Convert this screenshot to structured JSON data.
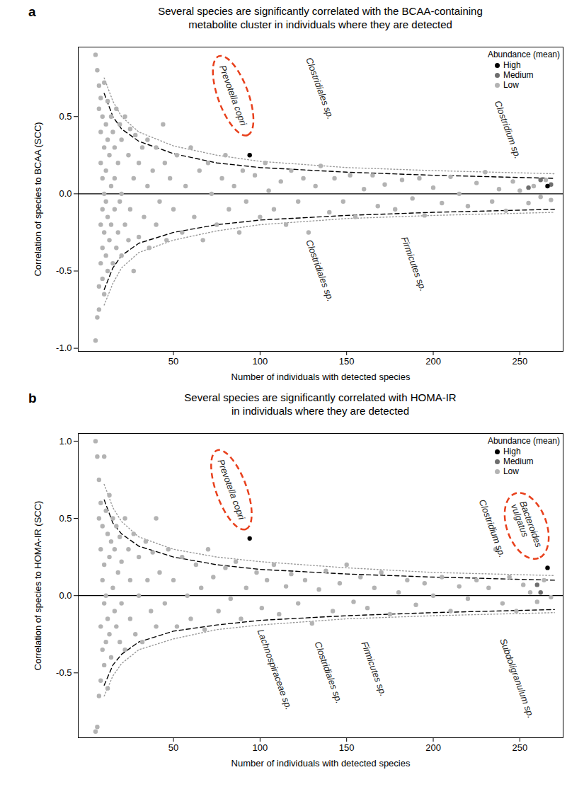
{
  "chart_data": [
    {
      "type": "scatter",
      "panel": "a",
      "title": "Several species are significantly correlated with the BCAA-containing\nmetabolite cluster in individuals where they are detected",
      "x_label": "Number of individuals with detected species",
      "y_label": "Correlation of species to BCAA (SCC)",
      "xlim": [
        -5,
        275
      ],
      "ylim": [
        -1.02,
        0.95
      ],
      "xticks": [
        50,
        100,
        150,
        200,
        250
      ],
      "yticks": [
        {
          "value": -1,
          "label": "-1.0"
        },
        -0.5,
        {
          "value": 0,
          "label": "0.0"
        },
        0.5
      ],
      "grid": false,
      "legend": "top-right",
      "legend_title": "Abundance (mean)",
      "series": [
        {
          "name": "High",
          "type": "scatter",
          "marker": "circle",
          "color": "#000000",
          "x": [
            94,
            266
          ],
          "values": [
            0.25,
            0.05
          ]
        },
        {
          "name": "Medium",
          "type": "scatter",
          "marker": "circle",
          "color": "#6e6e6e",
          "x": [
            255,
            262,
            268
          ],
          "values": [
            0.04,
            0.09,
            0.06
          ]
        },
        {
          "name": "Low",
          "type": "scatter",
          "marker": "circle",
          "color": "#b3b3b3",
          "x": [
            5,
            5,
            6,
            6,
            7,
            7,
            7,
            7,
            8,
            8,
            8,
            8,
            8,
            9,
            9,
            9,
            9,
            9,
            10,
            10,
            10,
            10,
            10,
            11,
            11,
            11,
            11,
            12,
            12,
            12,
            12,
            13,
            13,
            14,
            14,
            14,
            15,
            15,
            16,
            16,
            16,
            17,
            17,
            18,
            18,
            19,
            19,
            20,
            20,
            20,
            22,
            22,
            24,
            24,
            25,
            25,
            27,
            27,
            28,
            30,
            30,
            32,
            33,
            35,
            35,
            36,
            38,
            40,
            40,
            42,
            44,
            45,
            46,
            48,
            50,
            52,
            55,
            57,
            60,
            62,
            65,
            67,
            70,
            72,
            75,
            78,
            80,
            82,
            85,
            88,
            90,
            92,
            97,
            100,
            103,
            105,
            108,
            112,
            115,
            118,
            122,
            125,
            128,
            132,
            135,
            140,
            143,
            148,
            152,
            155,
            160,
            165,
            168,
            172,
            178,
            182,
            188,
            192,
            195,
            200,
            205,
            210,
            215,
            220,
            225,
            230,
            234,
            238,
            242,
            246,
            250,
            255,
            258,
            262,
            265,
            268
          ],
          "values": [
            0.9,
            -0.95,
            0.8,
            -0.8,
            0.7,
            0.55,
            -0.6,
            -0.75,
            0.62,
            0.4,
            0.2,
            -0.2,
            -0.45,
            0.5,
            0.1,
            -0.1,
            -0.35,
            -0.55,
            0.72,
            0.3,
            0.0,
            -0.25,
            -0.65,
            0.45,
            0.15,
            -0.05,
            -0.4,
            0.6,
            0.35,
            -0.15,
            -0.5,
            0.25,
            -0.3,
            0.5,
            0.05,
            -0.2,
            0.4,
            -0.45,
            0.3,
            0.1,
            -0.1,
            0.55,
            -0.35,
            0.2,
            -0.25,
            0.45,
            -0.05,
            0.35,
            0.0,
            -0.4,
            0.5,
            -0.2,
            0.25,
            -0.3,
            0.42,
            -0.1,
            0.1,
            -0.5,
            0.38,
            0.2,
            -0.28,
            0.3,
            -0.15,
            0.35,
            0.05,
            -0.35,
            0.15,
            0.3,
            -0.2,
            -0.05,
            0.45,
            0.2,
            -0.3,
            0.1,
            -0.1,
            0.25,
            -0.25,
            0.05,
            0.3,
            -0.15,
            0.15,
            -0.3,
            0.2,
            0.0,
            -0.2,
            0.1,
            0.25,
            -0.1,
            0.05,
            -0.25,
            0.15,
            -0.05,
            0.12,
            -0.15,
            0.2,
            0.02,
            -0.1,
            0.08,
            -0.2,
            0.15,
            -0.05,
            0.1,
            -0.25,
            0.05,
            0.18,
            -0.12,
            0.1,
            -0.05,
            0.12,
            -0.15,
            0.03,
            0.12,
            -0.08,
            0.06,
            -0.1,
            0.09,
            -0.03,
            0.1,
            -0.14,
            0.04,
            -0.06,
            0.11,
            0.0,
            -0.08,
            0.07,
            0.14,
            -0.05,
            0.03,
            -0.11,
            0.08,
            0.02,
            -0.06,
            0.05,
            -0.02,
            0.09,
            -0.04
          ]
        },
        {
          "type": "line",
          "line_style": "solid",
          "color": "#000000",
          "x": [
            -5,
            275
          ],
          "values": [
            0,
            0
          ]
        },
        {
          "type": "line",
          "line_style": "dashed",
          "color": "#000000",
          "x": [
            10,
            15,
            20,
            30,
            50,
            75,
            100,
            150,
            200,
            270
          ],
          "values": [
            0.65,
            0.5,
            0.42,
            0.34,
            0.26,
            0.2,
            0.17,
            0.14,
            0.12,
            0.1
          ]
        },
        {
          "type": "line",
          "line_style": "dotted",
          "color": "#999999",
          "x": [
            10,
            15,
            20,
            30,
            50,
            75,
            100,
            150,
            200,
            270
          ],
          "values": [
            0.75,
            0.6,
            0.5,
            0.4,
            0.31,
            0.25,
            0.21,
            0.17,
            0.15,
            0.13
          ]
        },
        {
          "type": "line",
          "line_style": "dashed",
          "color": "#000000",
          "x": [
            10,
            15,
            20,
            30,
            50,
            75,
            100,
            150,
            200,
            270
          ],
          "values": [
            -0.62,
            -0.48,
            -0.4,
            -0.32,
            -0.25,
            -0.2,
            -0.17,
            -0.14,
            -0.12,
            -0.1
          ]
        },
        {
          "type": "line",
          "line_style": "dotted",
          "color": "#999999",
          "x": [
            10,
            15,
            20,
            30,
            50,
            75,
            100,
            150,
            200,
            270
          ],
          "values": [
            -0.72,
            -0.58,
            -0.48,
            -0.38,
            -0.3,
            -0.24,
            -0.2,
            -0.16,
            -0.14,
            -0.12
          ]
        }
      ],
      "annotations": [
        {
          "text": "Prevotella copri",
          "x": 78,
          "y": 0.83,
          "marker": "ellipse",
          "color": "#e8401c"
        },
        {
          "text": "Clostridiales sp.",
          "x": 128,
          "y": 0.88
        },
        {
          "text": "Clostridium sp.",
          "x": 237,
          "y": 0.6
        },
        {
          "text": "Clostridiales sp.",
          "x": 128,
          "y": -0.3
        },
        {
          "text": "Firmicutes sp.",
          "x": 183,
          "y": -0.28
        }
      ]
    },
    {
      "type": "scatter",
      "panel": "b",
      "title": "Several species are significantly correlated with HOMA-IR\nin individuals where they are detected",
      "x_label": "Number of individuals with detected species",
      "y_label": "Correlation of species to HOMA-IR (SCC)",
      "xlim": [
        -5,
        275
      ],
      "ylim": [
        -0.92,
        1.05
      ],
      "xticks": [
        50,
        100,
        150,
        200,
        250
      ],
      "yticks": [
        -0.5,
        {
          "value": 0,
          "label": "0.0"
        },
        0.5,
        {
          "value": 1,
          "label": "1.0"
        }
      ],
      "grid": false,
      "legend": "top-right",
      "legend_title": "Abundance (mean)",
      "series": [
        {
          "name": "High",
          "type": "scatter",
          "marker": "circle",
          "color": "#000000",
          "x": [
            94,
            266
          ],
          "values": [
            0.37,
            0.18
          ]
        },
        {
          "name": "Medium",
          "type": "scatter",
          "marker": "circle",
          "color": "#6e6e6e",
          "x": [
            260,
            262
          ],
          "values": [
            0.07,
            0.02
          ]
        },
        {
          "name": "Low",
          "type": "scatter",
          "marker": "circle",
          "color": "#b3b3b3",
          "x": [
            5,
            5,
            6,
            6,
            7,
            7,
            7,
            8,
            8,
            8,
            8,
            9,
            9,
            9,
            10,
            10,
            10,
            10,
            11,
            11,
            11,
            12,
            12,
            12,
            13,
            13,
            13,
            14,
            14,
            15,
            15,
            16,
            16,
            17,
            17,
            18,
            19,
            19,
            20,
            20,
            22,
            22,
            24,
            25,
            25,
            27,
            28,
            30,
            30,
            32,
            34,
            35,
            37,
            38,
            40,
            40,
            42,
            45,
            47,
            50,
            52,
            55,
            58,
            60,
            63,
            66,
            68,
            70,
            73,
            76,
            80,
            83,
            86,
            89,
            92,
            98,
            101,
            104,
            108,
            111,
            115,
            118,
            122,
            126,
            130,
            134,
            138,
            142,
            146,
            150,
            154,
            158,
            162,
            166,
            170,
            175,
            180,
            185,
            190,
            195,
            200,
            205,
            210,
            215,
            220,
            225,
            232,
            236,
            240,
            244,
            248,
            252,
            256,
            260,
            264,
            268
          ],
          "values": [
            1.0,
            -0.88,
            0.9,
            -0.85,
            0.75,
            0.5,
            -0.65,
            0.6,
            0.3,
            -0.2,
            -0.55,
            0.45,
            0.1,
            -0.35,
            0.9,
            0.2,
            -0.05,
            -0.45,
            0.55,
            0.0,
            -0.3,
            0.4,
            -0.15,
            -0.6,
            0.65,
            0.25,
            -0.25,
            0.35,
            -0.4,
            0.5,
            0.05,
            0.3,
            -0.1,
            0.45,
            -0.2,
            0.15,
            0.38,
            -0.3,
            0.22,
            -0.05,
            0.5,
            -0.35,
            0.3,
            0.1,
            -0.15,
            0.4,
            -0.25,
            0.25,
            0.0,
            -0.3,
            0.35,
            0.1,
            -0.1,
            0.28,
            0.5,
            -0.2,
            0.15,
            -0.05,
            0.3,
            0.1,
            -0.2,
            0.25,
            0.0,
            -0.15,
            0.2,
            0.05,
            -0.22,
            0.3,
            0.12,
            -0.1,
            0.18,
            -0.02,
            0.22,
            -0.15,
            0.05,
            0.15,
            -0.08,
            0.1,
            0.2,
            -0.12,
            0.06,
            0.14,
            -0.05,
            0.1,
            -0.18,
            0.04,
            0.16,
            -0.1,
            0.08,
            0.2,
            -0.04,
            0.12,
            -0.08,
            0.05,
            0.15,
            -0.12,
            0.02,
            0.1,
            -0.06,
            0.08,
            0.0,
            0.12,
            -0.1,
            0.06,
            -0.02,
            0.1,
            0.05,
            0.3,
            -0.05,
            0.12,
            -0.1,
            0.07,
            0.02,
            -0.04,
            0.1,
            -0.01
          ]
        },
        {
          "type": "line",
          "line_style": "solid",
          "color": "#000000",
          "x": [
            -5,
            275
          ],
          "values": [
            0,
            0
          ]
        },
        {
          "type": "line",
          "line_style": "dashed",
          "color": "#000000",
          "x": [
            10,
            15,
            20,
            30,
            50,
            75,
            100,
            150,
            200,
            270
          ],
          "values": [
            0.62,
            0.47,
            0.4,
            0.32,
            0.25,
            0.2,
            0.17,
            0.14,
            0.12,
            0.1
          ]
        },
        {
          "type": "line",
          "line_style": "dotted",
          "color": "#999999",
          "x": [
            10,
            15,
            20,
            30,
            50,
            75,
            100,
            150,
            200,
            270
          ],
          "values": [
            0.72,
            0.57,
            0.48,
            0.38,
            0.3,
            0.25,
            0.22,
            0.18,
            0.15,
            0.13
          ]
        },
        {
          "type": "line",
          "line_style": "dashed",
          "color": "#000000",
          "x": [
            10,
            15,
            20,
            30,
            50,
            75,
            100,
            150,
            200,
            270
          ],
          "values": [
            -0.58,
            -0.45,
            -0.38,
            -0.3,
            -0.23,
            -0.19,
            -0.16,
            -0.13,
            -0.11,
            -0.09
          ]
        },
        {
          "type": "line",
          "line_style": "dotted",
          "color": "#999999",
          "x": [
            10,
            15,
            20,
            30,
            50,
            75,
            100,
            150,
            200,
            270
          ],
          "values": [
            -0.65,
            -0.52,
            -0.44,
            -0.35,
            -0.28,
            -0.22,
            -0.19,
            -0.15,
            -0.13,
            -0.11
          ]
        }
      ],
      "annotations": [
        {
          "text": "Prevotella copri",
          "x": 77,
          "y": 0.88,
          "marker": "ellipse",
          "color": "#e8401c"
        },
        {
          "text": "Clostridium sp.",
          "x": 228,
          "y": 0.62
        },
        {
          "text": "Bacteroides\nvulgatus",
          "x": 249,
          "y": 0.6,
          "marker": "ellipse",
          "color": "#e8401c"
        },
        {
          "text": "Lachnospiraceae sp.",
          "x": 100,
          "y": -0.22
        },
        {
          "text": "Clostridiales sp.",
          "x": 133,
          "y": -0.3
        },
        {
          "text": "Firmicutes sp.",
          "x": 160,
          "y": -0.3
        },
        {
          "text": "Subdoligranulum sp.",
          "x": 240,
          "y": -0.28
        }
      ]
    }
  ]
}
